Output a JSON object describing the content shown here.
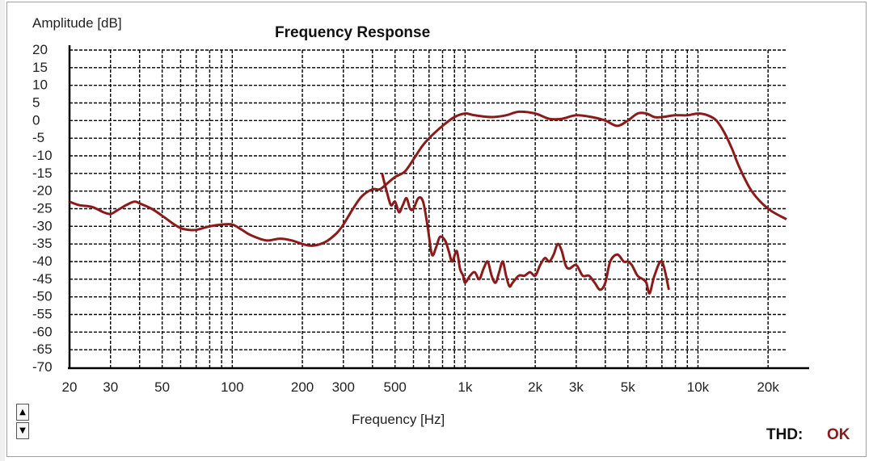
{
  "chart_data": {
    "type": "line",
    "title": "Frequency Response",
    "ylabel": "Amplitude [dB]",
    "xlabel": "Frequency [Hz]",
    "x_scale": "log",
    "xlim": [
      20,
      24000
    ],
    "ylim": [
      -70,
      20
    ],
    "x_ticks": [
      20,
      30,
      50,
      100,
      200,
      300,
      500,
      1000,
      2000,
      3000,
      5000,
      10000,
      20000
    ],
    "x_tick_labels": [
      "20",
      "30",
      "50",
      "100",
      "200",
      "300",
      "500",
      "1k",
      "2k",
      "3k",
      "5k",
      "10k",
      "20k"
    ],
    "y_ticks": [
      20,
      15,
      10,
      5,
      0,
      -5,
      -10,
      -15,
      -20,
      -25,
      -30,
      -35,
      -40,
      -45,
      -50,
      -55,
      -60,
      -65,
      -70
    ],
    "y_tick_labels": [
      "20",
      "15",
      "10",
      "5",
      "0",
      "-5",
      "-10",
      "-15",
      "-20",
      "-25",
      "-30",
      "-35",
      "-40",
      "-45",
      "-50",
      "-55",
      "-60",
      "-65",
      "-70"
    ],
    "grid": true,
    "series": [
      {
        "color": "#8b1a1a",
        "x": [
          20,
          22,
          25,
          28,
          30,
          32,
          35,
          38,
          40,
          45,
          50,
          55,
          60,
          65,
          70,
          80,
          90,
          100,
          110,
          120,
          140,
          160,
          180,
          200,
          220,
          250,
          280,
          300,
          330,
          360,
          400,
          430,
          460,
          500,
          550,
          600,
          650,
          700,
          800,
          900,
          1000,
          1100,
          1300,
          1500,
          1700,
          2000,
          2300,
          2600,
          3000,
          3500,
          4000,
          4500,
          5000,
          5500,
          6000,
          6500,
          7000,
          8000,
          9000,
          10000,
          11000,
          12000,
          13000,
          14000,
          15000,
          17000,
          20000,
          24000
        ],
        "y": [
          -23,
          -24,
          -24.5,
          -26,
          -26.5,
          -25.5,
          -24,
          -23,
          -23.5,
          -25,
          -27,
          -29,
          -30.5,
          -31,
          -31,
          -30,
          -29.5,
          -29.5,
          -31,
          -32.5,
          -34,
          -33.5,
          -34,
          -35,
          -35.5,
          -34.5,
          -32,
          -29.5,
          -25,
          -21.5,
          -19.5,
          -19.5,
          -18,
          -16,
          -14.5,
          -11,
          -7.5,
          -5,
          -1.5,
          1,
          2,
          1.5,
          1,
          1.5,
          2.5,
          2,
          0.5,
          0.5,
          1.5,
          1,
          0,
          -1.5,
          0,
          2,
          2,
          1,
          1,
          1.5,
          1.5,
          2,
          1.5,
          0,
          -3.5,
          -8,
          -13,
          -20,
          -25,
          -28
        ]
      },
      {
        "color": "#8b1a1a",
        "x": [
          440,
          460,
          480,
          500,
          520,
          540,
          560,
          580,
          600,
          630,
          660,
          690,
          720,
          750,
          780,
          820,
          850,
          880,
          920,
          950,
          980,
          1000,
          1050,
          1100,
          1150,
          1200,
          1250,
          1300,
          1350,
          1400,
          1450,
          1500,
          1550,
          1600,
          1700,
          1800,
          1900,
          2000,
          2100,
          2200,
          2300,
          2400,
          2500,
          2600,
          2700,
          2800,
          3000,
          3200,
          3400,
          3600,
          3800,
          4000,
          4200,
          4500,
          4800,
          5000,
          5200,
          5500,
          5800,
          6000,
          6200,
          6500,
          7000,
          7500
        ],
        "y": [
          -15,
          -20,
          -24,
          -23,
          -26,
          -24,
          -22,
          -25,
          -25,
          -22,
          -23,
          -30,
          -38,
          -36,
          -33,
          -34,
          -37,
          -40,
          -37,
          -42,
          -44,
          -46,
          -44,
          -43,
          -45,
          -42,
          -40,
          -44,
          -46,
          -43,
          -40,
          -44,
          -47,
          -46,
          -44,
          -44,
          -43,
          -44,
          -41,
          -39,
          -40,
          -38,
          -35,
          -37,
          -41,
          -42,
          -41,
          -44,
          -44,
          -46,
          -48,
          -46,
          -40,
          -38,
          -40,
          -40,
          -41,
          -44,
          -45,
          -46,
          -49,
          -44,
          -40,
          -48
        ]
      }
    ]
  },
  "thd_label": "THD:",
  "thd_value": "OK",
  "thd_color": "#8b1a1a",
  "spin_up": "▲",
  "spin_down": "▼"
}
